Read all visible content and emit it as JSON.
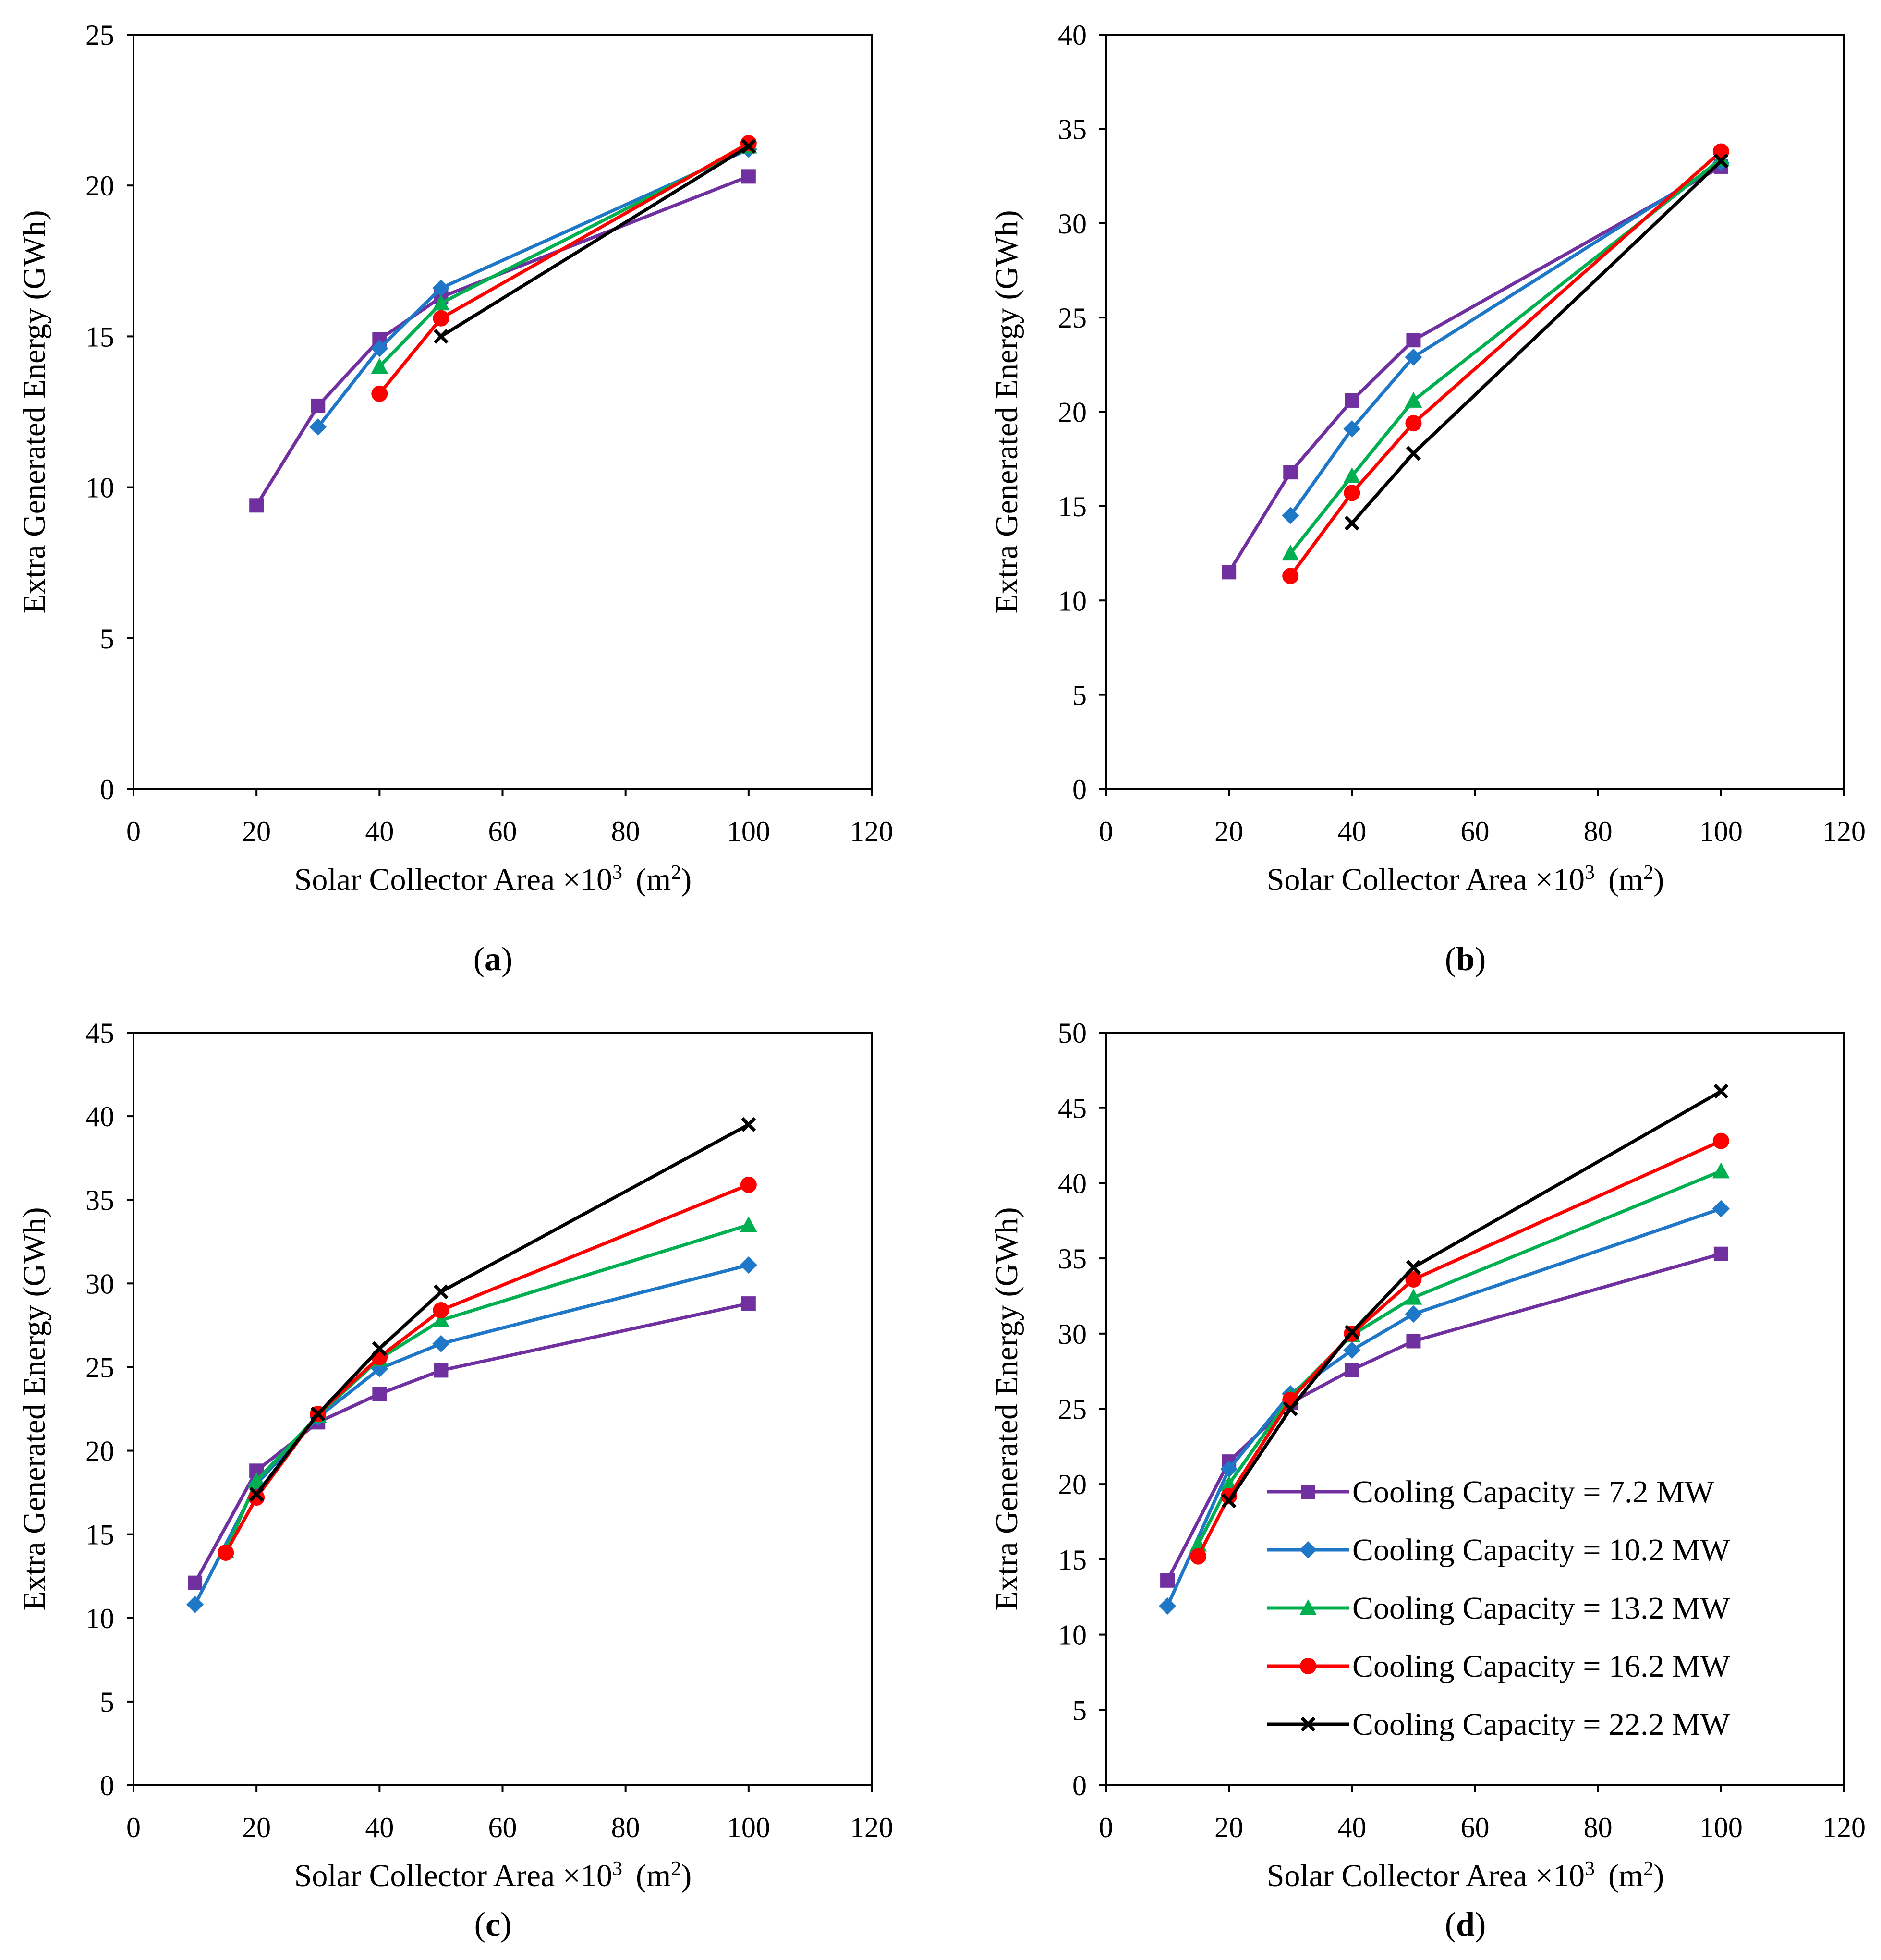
{
  "colors": {
    "s72": "#7030A0",
    "s102": "#1F77C8",
    "s132": "#00B050",
    "s162": "#FF0000",
    "s222": "#000000"
  },
  "legend": {
    "items": [
      {
        "key": "s72",
        "label": "Cooling Capacity = 7.2 MW",
        "marker": "square"
      },
      {
        "key": "s102",
        "label": "Cooling Capacity = 10.2 MW",
        "marker": "diamond"
      },
      {
        "key": "s132",
        "label": "Cooling Capacity = 13.2 MW",
        "marker": "triangle"
      },
      {
        "key": "s162",
        "label": "Cooling Capacity = 16.2 MW",
        "marker": "circle"
      },
      {
        "key": "s222",
        "label": "Cooling Capacity = 22.2 MW",
        "marker": "x"
      }
    ]
  },
  "chart_data": [
    {
      "type": "line",
      "caption": "a",
      "xlabel": "Solar Collector Area ×10",
      "xlabel_sup": "3",
      "xlabel_unit": "(m",
      "xlabel_unit_sup": "2",
      "xlabel_unit_end": ")",
      "ylabel": "Extra Generated Energy (GWh)",
      "xlim": [
        0,
        120
      ],
      "ylim": [
        0,
        25
      ],
      "xticks": [
        0,
        20,
        40,
        60,
        80,
        100,
        120
      ],
      "yticks": [
        0,
        5,
        10,
        15,
        20,
        25
      ],
      "grid": false,
      "series": [
        {
          "key": "s72",
          "x": [
            20,
            30,
            40,
            50,
            100
          ],
          "y": [
            9.4,
            12.7,
            14.9,
            16.3,
            20.3
          ]
        },
        {
          "key": "s102",
          "x": [
            30,
            40,
            50,
            100
          ],
          "y": [
            12.0,
            14.6,
            16.6,
            21.2
          ]
        },
        {
          "key": "s132",
          "x": [
            40,
            50,
            100
          ],
          "y": [
            14.0,
            16.1,
            21.3
          ]
        },
        {
          "key": "s162",
          "x": [
            40,
            50,
            100
          ],
          "y": [
            13.1,
            15.6,
            21.4
          ]
        },
        {
          "key": "s222",
          "x": [
            50,
            100
          ],
          "y": [
            15.0,
            21.3
          ]
        }
      ]
    },
    {
      "type": "line",
      "caption": "b",
      "xlabel": "Solar Collector Area ×10",
      "xlabel_sup": "3",
      "xlabel_unit": "(m",
      "xlabel_unit_sup": "2",
      "xlabel_unit_end": ")",
      "ylabel": "Extra Generated Energy (GWh)",
      "xlim": [
        0,
        120
      ],
      "ylim": [
        0,
        40
      ],
      "xticks": [
        0,
        20,
        40,
        60,
        80,
        100,
        120
      ],
      "yticks": [
        0,
        5,
        10,
        15,
        20,
        25,
        30,
        35,
        40
      ],
      "grid": false,
      "series": [
        {
          "key": "s72",
          "x": [
            20,
            30,
            40,
            50,
            100
          ],
          "y": [
            11.5,
            16.8,
            20.6,
            23.8,
            33.0
          ]
        },
        {
          "key": "s102",
          "x": [
            30,
            40,
            50,
            100
          ],
          "y": [
            14.5,
            19.1,
            22.9,
            33.2
          ]
        },
        {
          "key": "s132",
          "x": [
            30,
            40,
            50,
            100
          ],
          "y": [
            12.5,
            16.6,
            20.6,
            33.4
          ]
        },
        {
          "key": "s162",
          "x": [
            30,
            40,
            50,
            100
          ],
          "y": [
            11.3,
            15.7,
            19.4,
            33.8
          ]
        },
        {
          "key": "s222",
          "x": [
            40,
            50,
            100
          ],
          "y": [
            14.1,
            17.8,
            33.3
          ]
        }
      ]
    },
    {
      "type": "line",
      "caption": "c",
      "xlabel": "Solar Collector Area ×10",
      "xlabel_sup": "3",
      "xlabel_unit": "(m",
      "xlabel_unit_sup": "2",
      "xlabel_unit_end": ")",
      "ylabel": "Extra Generated Energy (GWh)",
      "xlim": [
        0,
        120
      ],
      "ylim": [
        0,
        45
      ],
      "xticks": [
        0,
        20,
        40,
        60,
        80,
        100,
        120
      ],
      "yticks": [
        0,
        5,
        10,
        15,
        20,
        25,
        30,
        35,
        40,
        45
      ],
      "grid": false,
      "series": [
        {
          "key": "s72",
          "x": [
            10,
            20,
            30,
            40,
            50,
            100
          ],
          "y": [
            12.1,
            18.8,
            21.7,
            23.4,
            24.8,
            28.8
          ]
        },
        {
          "key": "s102",
          "x": [
            10,
            20,
            30,
            40,
            50,
            100
          ],
          "y": [
            10.8,
            18.0,
            22.0,
            24.9,
            26.4,
            31.1
          ]
        },
        {
          "key": "s132",
          "x": [
            15,
            20,
            30,
            40,
            50,
            100
          ],
          "y": [
            14.0,
            18.2,
            22.1,
            25.5,
            27.8,
            33.5
          ]
        },
        {
          "key": "s162",
          "x": [
            15,
            20,
            30,
            40,
            50,
            100
          ],
          "y": [
            13.9,
            17.2,
            22.2,
            25.6,
            28.4,
            35.9
          ]
        },
        {
          "key": "s222",
          "x": [
            20,
            30,
            40,
            50,
            100
          ],
          "y": [
            17.4,
            22.2,
            26.1,
            29.5,
            39.5
          ]
        }
      ]
    },
    {
      "type": "line",
      "caption": "d",
      "xlabel": "Solar Collector Area ×10",
      "xlabel_sup": "3",
      "xlabel_unit": "(m",
      "xlabel_unit_sup": "2",
      "xlabel_unit_end": ")",
      "ylabel": "Extra Generated Energy (GWh)",
      "xlim": [
        0,
        120
      ],
      "ylim": [
        0,
        50
      ],
      "xticks": [
        0,
        20,
        40,
        60,
        80,
        100,
        120
      ],
      "yticks": [
        0,
        5,
        10,
        15,
        20,
        25,
        30,
        35,
        40,
        45,
        50
      ],
      "grid": false,
      "legend": "lower-right",
      "series": [
        {
          "key": "s72",
          "x": [
            10,
            20,
            30,
            40,
            50,
            100
          ],
          "y": [
            13.6,
            21.5,
            25.4,
            27.6,
            29.5,
            35.3
          ]
        },
        {
          "key": "s102",
          "x": [
            10,
            20,
            30,
            40,
            50,
            100
          ],
          "y": [
            11.9,
            21.0,
            26.0,
            28.9,
            31.3,
            38.3
          ]
        },
        {
          "key": "s132",
          "x": [
            15,
            20,
            30,
            40,
            50,
            100
          ],
          "y": [
            16.0,
            20.0,
            25.8,
            29.9,
            32.4,
            40.8
          ]
        },
        {
          "key": "s162",
          "x": [
            15,
            20,
            30,
            40,
            50,
            100
          ],
          "y": [
            15.2,
            19.2,
            25.6,
            30.0,
            33.6,
            42.8
          ]
        },
        {
          "key": "s222",
          "x": [
            20,
            30,
            40,
            50,
            100
          ],
          "y": [
            18.9,
            25.0,
            30.1,
            34.4,
            46.1
          ]
        }
      ]
    }
  ]
}
